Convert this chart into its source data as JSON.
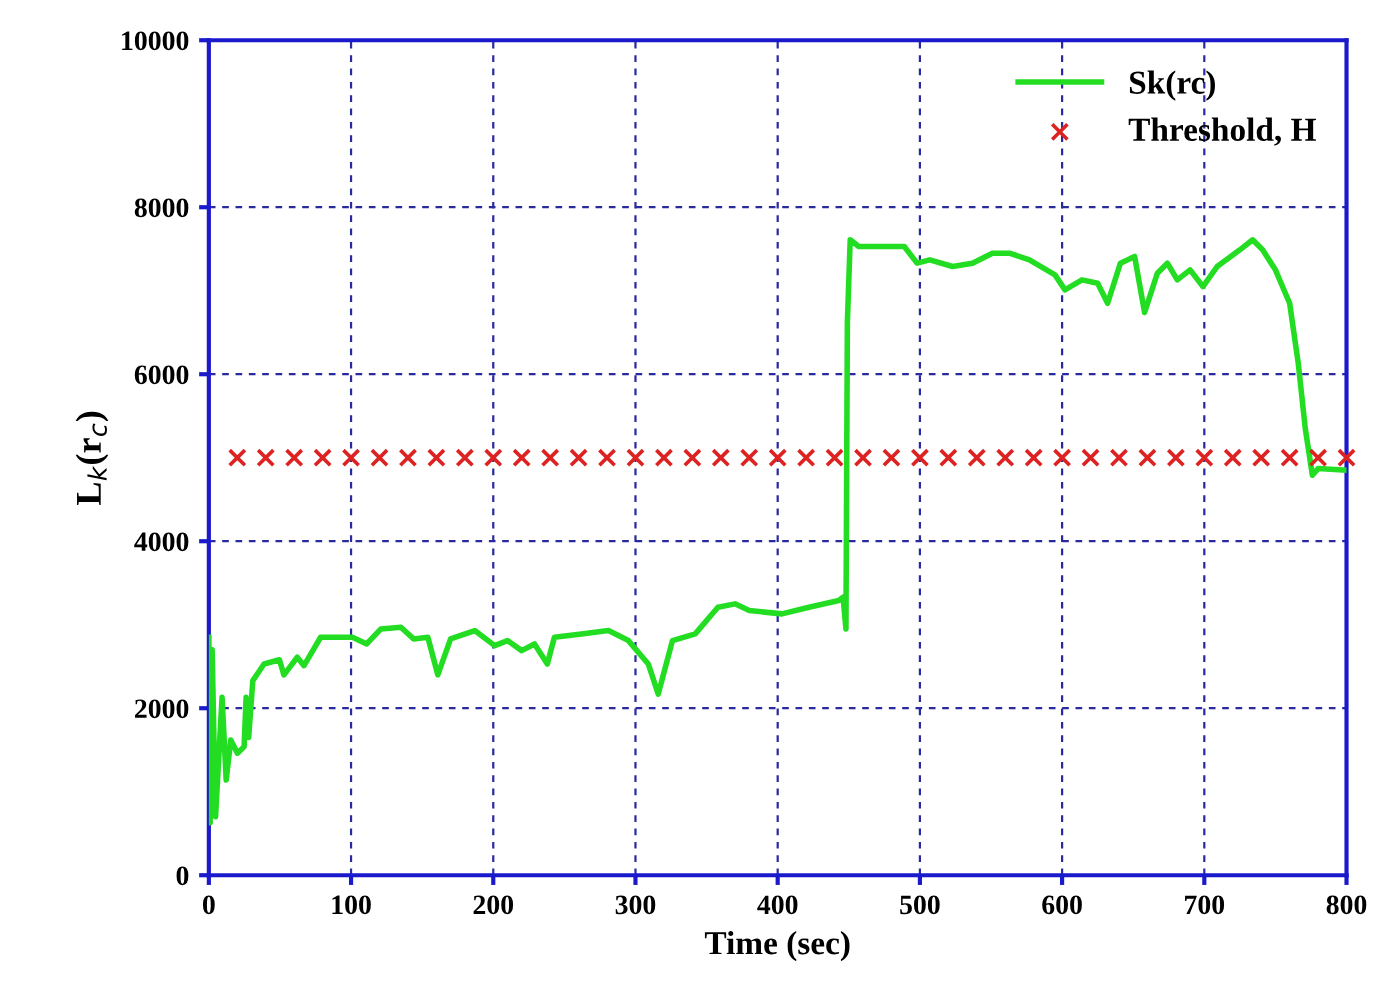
{
  "chart_data": {
    "type": "line",
    "xlabel": "Time (sec)",
    "ylabel": "L$_{k}$(r$_{c}$)",
    "xlim": [
      0,
      800
    ],
    "xticks": [
      0,
      100,
      200,
      300,
      400,
      500,
      600,
      700,
      800
    ],
    "ylim": [
      0,
      10000
    ],
    "yticks": [
      0,
      2000,
      4000,
      6000,
      8000,
      10000
    ],
    "grid": true,
    "legend": "top right",
    "series": [
      {
        "name": "Sk(rc)",
        "color": "#22dd22",
        "marker": "none",
        "x": [
          0,
          0.9,
          2.3,
          4.7,
          9.3,
          12.2,
          15.4,
          20.1,
          24.8,
          26.2,
          28,
          30.9,
          38.8,
          49.6,
          52.8,
          62.2,
          66.9,
          78.6,
          92.6,
          101,
          111,
          121,
          135,
          144,
          154,
          161,
          170,
          187,
          201,
          210,
          220,
          229,
          238,
          243,
          262,
          281,
          295,
          309,
          316,
          326,
          342,
          358,
          370,
          380,
          403,
          422,
          443,
          446,
          448,
          449,
          451,
          457,
          489,
          498,
          507,
          523,
          537,
          551,
          563,
          577,
          595,
          602,
          614,
          625,
          632,
          641,
          651,
          658,
          667,
          674,
          681,
          690,
          699,
          709,
          725,
          734,
          741,
          750,
          760,
          766,
          771,
          776,
          780,
          800
        ],
        "values": [
          2850,
          630,
          2700,
          700,
          2130,
          1140,
          1620,
          1460,
          1540,
          2130,
          1650,
          2330,
          2530,
          2580,
          2400,
          2610,
          2510,
          2850,
          2850,
          2850,
          2770,
          2950,
          2970,
          2830,
          2850,
          2400,
          2830,
          2930,
          2750,
          2810,
          2690,
          2770,
          2530,
          2850,
          2890,
          2930,
          2810,
          2530,
          2170,
          2810,
          2890,
          3210,
          3250,
          3170,
          3130,
          3210,
          3290,
          3330,
          2950,
          6620,
          7610,
          7530,
          7530,
          7330,
          7370,
          7290,
          7330,
          7450,
          7450,
          7370,
          7190,
          7010,
          7130,
          7090,
          6850,
          7330,
          7410,
          6740,
          7210,
          7330,
          7130,
          7250,
          7050,
          7290,
          7490,
          7610,
          7490,
          7250,
          6850,
          6140,
          5350,
          4790,
          4870,
          4850
        ]
      },
      {
        "name": "Threshold, H",
        "type": "scatter",
        "color": "#dd2222",
        "marker": "cross",
        "x": [
          20,
          40,
          60,
          80,
          100,
          120,
          140,
          160,
          180,
          200,
          220,
          240,
          260,
          280,
          300,
          320,
          340,
          360,
          380,
          400,
          420,
          440,
          460,
          480,
          500,
          520,
          540,
          560,
          580,
          600,
          620,
          640,
          660,
          680,
          700,
          720,
          740,
          760,
          780,
          800
        ],
        "values": [
          5000,
          5000,
          5000,
          5000,
          5000,
          5000,
          5000,
          5000,
          5000,
          5000,
          5000,
          5000,
          5000,
          5000,
          5000,
          5000,
          5000,
          5000,
          5000,
          5000,
          5000,
          5000,
          5000,
          5000,
          5000,
          5000,
          5000,
          5000,
          5000,
          5000,
          5000,
          5000,
          5000,
          5000,
          5000,
          5000,
          5000,
          5000,
          5000,
          5000
        ]
      }
    ]
  }
}
